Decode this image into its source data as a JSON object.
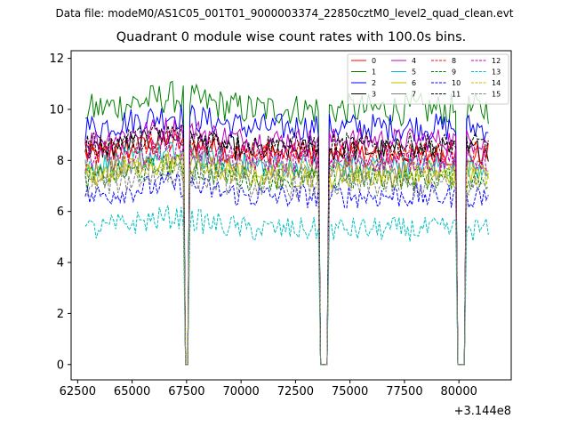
{
  "chart_data": {
    "type": "line",
    "suptitle": "Data file: modeM0/AS1C05_001T01_9000003374_22850cztM0_level2_quad_clean.evt",
    "title": "Quadrant 0 module wise count rates with 100.0s bins.",
    "xlabel": "",
    "ylabel": "",
    "x_offset_label": "+3.144e8",
    "xlim": [
      62200,
      82400
    ],
    "ylim": [
      -0.6,
      12.3
    ],
    "x_ticks": [
      62500,
      65000,
      67500,
      70000,
      72500,
      75000,
      77500,
      80000
    ],
    "x_tick_labels": [
      "62500",
      "65000",
      "67500",
      "70000",
      "72500",
      "75000",
      "77500",
      "80000"
    ],
    "y_ticks": [
      0,
      2,
      4,
      6,
      8,
      10,
      12
    ],
    "y_tick_labels": [
      "0",
      "2",
      "4",
      "6",
      "8",
      "10",
      "12"
    ],
    "bin_seconds": 100,
    "segments": [
      [
        62850,
        67300
      ],
      [
        67700,
        73500
      ],
      [
        74100,
        79800
      ],
      [
        80400,
        81350
      ]
    ],
    "dropouts": [
      {
        "start": 67400,
        "end": 67600,
        "rate": 0.0
      },
      {
        "start": 73600,
        "end": 74000,
        "rate": 0.0
      },
      {
        "start": 79900,
        "end": 80300,
        "rate": 0.0
      }
    ],
    "series": [
      {
        "name": "0",
        "color": "#ff0000",
        "dash": "solid",
        "level": 8.2,
        "noise": 0.3
      },
      {
        "name": "1",
        "color": "#008000",
        "dash": "solid",
        "level": 10.0,
        "noise": 0.4
      },
      {
        "name": "2",
        "color": "#0000ff",
        "dash": "solid",
        "level": 9.3,
        "noise": 0.35
      },
      {
        "name": "3",
        "color": "#000000",
        "dash": "solid",
        "level": 8.4,
        "noise": 0.3
      },
      {
        "name": "4",
        "color": "#bf00bf",
        "dash": "solid",
        "level": 8.8,
        "noise": 0.3
      },
      {
        "name": "5",
        "color": "#00bfbf",
        "dash": "solid",
        "level": 7.8,
        "noise": 0.3
      },
      {
        "name": "6",
        "color": "#bfbf00",
        "dash": "solid",
        "level": 7.4,
        "noise": 0.3
      },
      {
        "name": "7",
        "color": "#808080",
        "dash": "solid",
        "level": 7.7,
        "noise": 0.3
      },
      {
        "name": "8",
        "color": "#ff0000",
        "dash": "dashed",
        "level": 8.3,
        "noise": 0.3
      },
      {
        "name": "9",
        "color": "#008000",
        "dash": "dashed",
        "level": 7.3,
        "noise": 0.3
      },
      {
        "name": "10",
        "color": "#0000ff",
        "dash": "dashed",
        "level": 6.6,
        "noise": 0.3
      },
      {
        "name": "11",
        "color": "#000000",
        "dash": "dashed",
        "level": 8.6,
        "noise": 0.3
      },
      {
        "name": "12",
        "color": "#bf00bf",
        "dash": "dashed",
        "level": 8.0,
        "noise": 0.3
      },
      {
        "name": "13",
        "color": "#00bfbf",
        "dash": "dashed",
        "level": 5.3,
        "noise": 0.3
      },
      {
        "name": "14",
        "color": "#bfbf00",
        "dash": "dashed",
        "level": 7.5,
        "noise": 0.3
      },
      {
        "name": "15",
        "color": "#808080",
        "dash": "dashed",
        "level": 7.0,
        "noise": 0.3
      }
    ],
    "legend": "top-right"
  }
}
